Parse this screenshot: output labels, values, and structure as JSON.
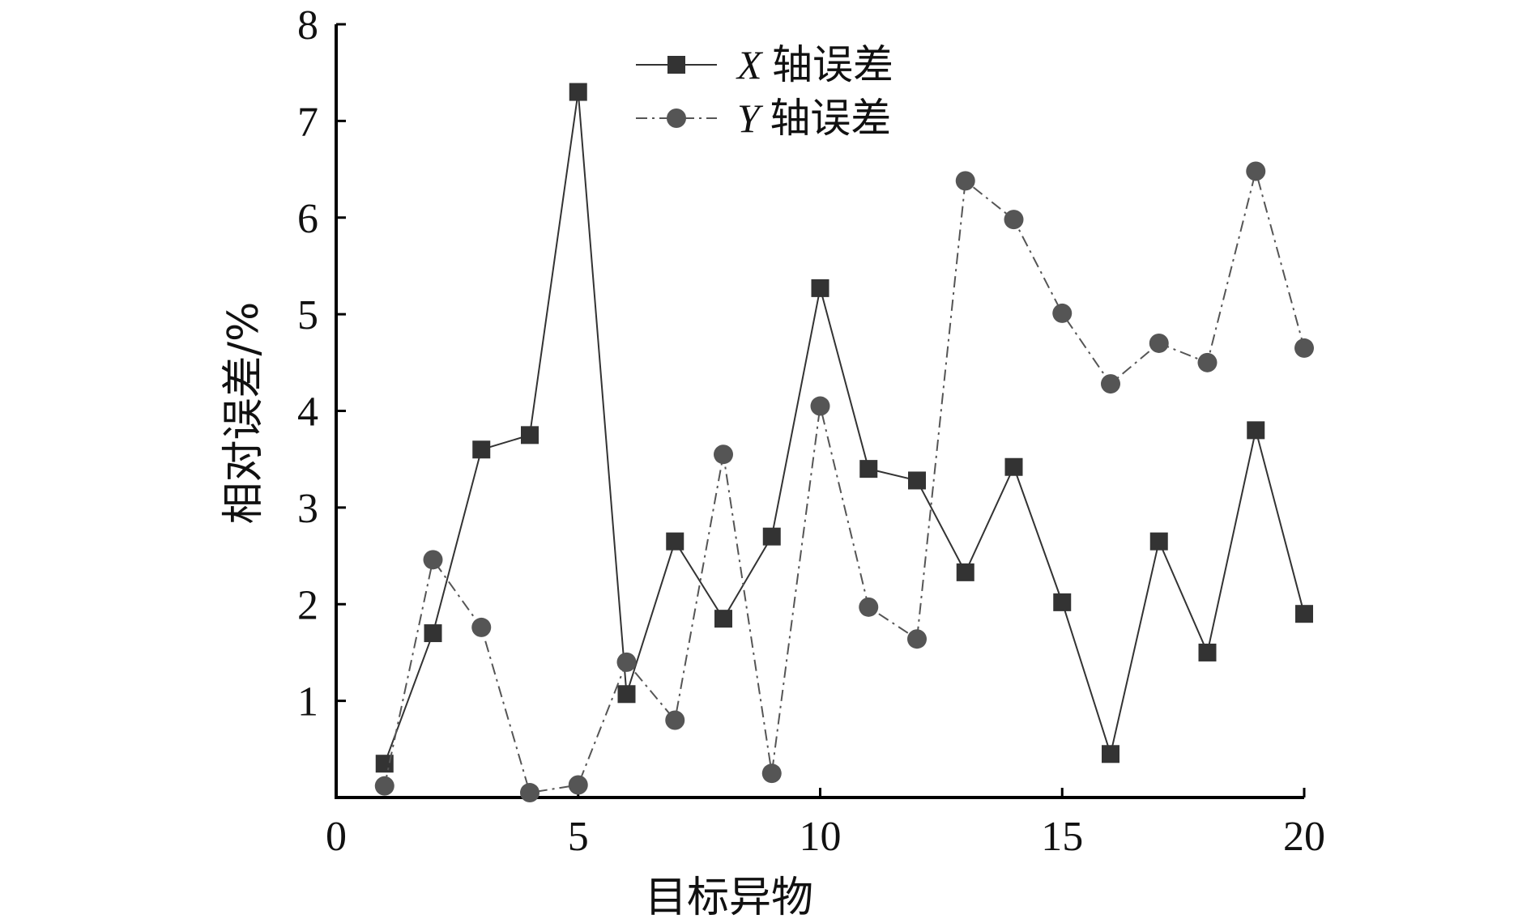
{
  "chart_data": {
    "type": "line",
    "xlabel": "目标异物",
    "ylabel": "相对误差/%",
    "xlim": [
      0,
      20
    ],
    "ylim": [
      0,
      8
    ],
    "x_ticks": [
      0,
      5,
      10,
      15,
      20
    ],
    "y_ticks": [
      1,
      2,
      3,
      4,
      5,
      6,
      7,
      8
    ],
    "grid": false,
    "legend_position": "top-center",
    "series": [
      {
        "name_prefix": "X",
        "name_suffix": "轴误差",
        "marker": "square",
        "line_style": "solid",
        "color": "#333333",
        "x": [
          1,
          2,
          3,
          4,
          5,
          6,
          7,
          8,
          9,
          10,
          11,
          12,
          13,
          14,
          15,
          16,
          17,
          18,
          19,
          20
        ],
        "values": [
          0.35,
          1.7,
          3.6,
          3.75,
          7.3,
          1.07,
          2.65,
          1.85,
          2.7,
          5.27,
          3.4,
          3.28,
          2.33,
          3.42,
          2.02,
          0.45,
          2.65,
          1.5,
          3.8,
          1.9
        ]
      },
      {
        "name_prefix": "Y",
        "name_suffix": "轴误差",
        "marker": "circle",
        "line_style": "dash-dot",
        "color": "#555555",
        "x": [
          1,
          2,
          3,
          4,
          5,
          6,
          7,
          8,
          9,
          10,
          11,
          12,
          13,
          14,
          15,
          16,
          17,
          18,
          19,
          20
        ],
        "values": [
          0.12,
          2.46,
          1.76,
          0.05,
          0.13,
          1.4,
          0.8,
          3.55,
          0.25,
          4.05,
          1.97,
          1.64,
          6.38,
          5.98,
          5.01,
          4.28,
          4.7,
          4.5,
          6.48,
          4.65
        ]
      }
    ]
  }
}
